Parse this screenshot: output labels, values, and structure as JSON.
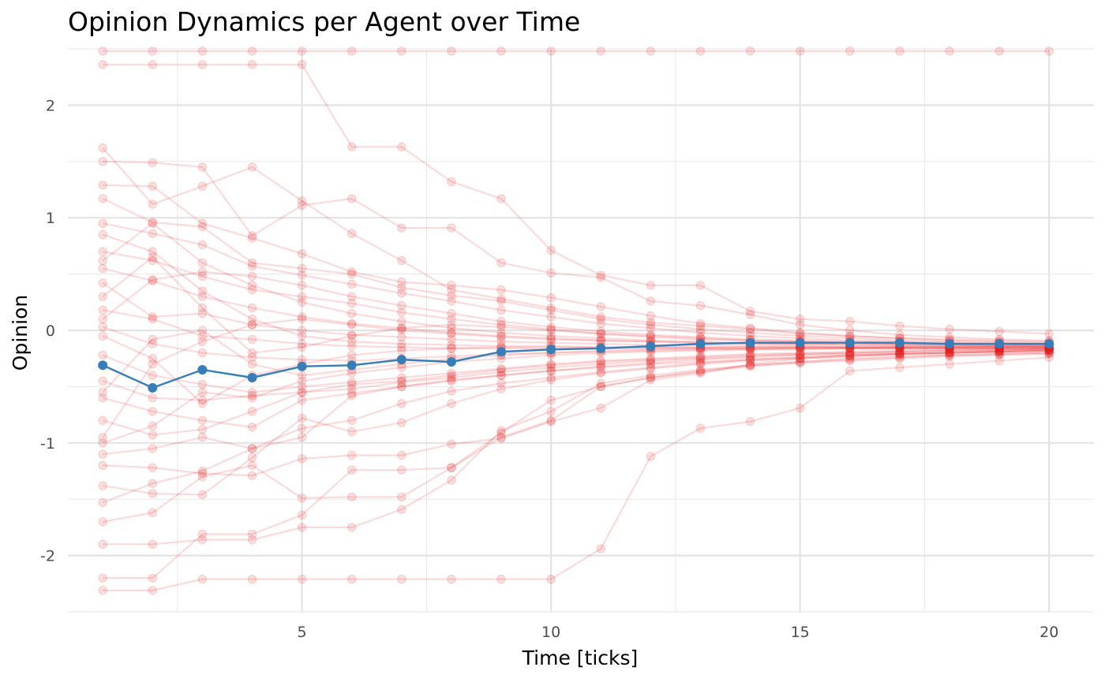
{
  "chart_data": {
    "type": "line",
    "title": "Opinion Dynamics per Agent over Time",
    "xlabel": "Time [ticks]",
    "ylabel": "Opinion",
    "xlim": [
      0.3,
      20.9
    ],
    "ylim": [
      -2.5,
      2.5
    ],
    "x_ticks": [
      5,
      10,
      15,
      20
    ],
    "x_tick_labels": [
      "5",
      "10",
      "15",
      "20"
    ],
    "x_minor_ticks": [
      2.5,
      7.5,
      12.5,
      17.5
    ],
    "y_ticks": [
      -2,
      -1,
      0,
      1,
      2
    ],
    "y_tick_labels": [
      "-2",
      "-1",
      "0",
      "1",
      "2"
    ],
    "y_minor_ticks": [
      -2.5,
      -1.5,
      -0.5,
      0.5,
      1.5,
      2.5
    ],
    "grid": true,
    "legend": "none",
    "agent_color": "#e41a1c",
    "mean_color": "#377eb8",
    "x": [
      1,
      2,
      3,
      4,
      5,
      6,
      7,
      8,
      9,
      10,
      11,
      12,
      13,
      14,
      15,
      16,
      17,
      18,
      19,
      20
    ],
    "highlighted_series": {
      "values": [
        -0.31,
        -0.51,
        -0.35,
        -0.42,
        -0.32,
        -0.31,
        -0.26,
        -0.28,
        -0.19,
        -0.17,
        -0.16,
        -0.14,
        -0.12,
        -0.11,
        -0.11,
        -0.11,
        -0.11,
        -0.12,
        -0.12,
        -0.12
      ]
    },
    "agent_series": [
      {
        "values": [
          2.48,
          2.48,
          2.48,
          2.48,
          2.48,
          2.48,
          2.48,
          2.48,
          2.48,
          2.48,
          2.48,
          2.48,
          2.48,
          2.48,
          2.48,
          2.48,
          2.48,
          2.48,
          2.48,
          2.48
        ]
      },
      {
        "values": [
          2.36,
          2.36,
          2.36,
          2.36,
          2.36,
          1.63,
          1.63,
          1.32,
          1.17,
          0.71,
          0.49,
          0.4,
          0.4,
          0.17,
          0.1,
          0.08,
          0.04,
          0.01,
          -0.01,
          -0.03
        ]
      },
      {
        "values": [
          1.62,
          1.12,
          1.28,
          1.45,
          1.15,
          0.86,
          0.62,
          0.36,
          0.28,
          0.2,
          0.12,
          0.07,
          0.04,
          0.01,
          -0.03,
          -0.05,
          -0.07,
          -0.08,
          -0.09,
          -0.1
        ]
      },
      {
        "values": [
          1.5,
          1.49,
          1.45,
          0.84,
          1.11,
          1.17,
          0.91,
          0.91,
          0.6,
          0.51,
          0.47,
          0.26,
          0.22,
          0.14,
          0.05,
          0.0,
          -0.04,
          -0.06,
          -0.08,
          -0.09
        ]
      },
      {
        "values": [
          1.29,
          1.28,
          0.95,
          0.82,
          0.68,
          0.52,
          0.43,
          0.4,
          0.36,
          0.29,
          0.21,
          0.13,
          0.06,
          0.02,
          -0.02,
          -0.05,
          -0.07,
          -0.09,
          -0.1,
          -0.11
        ]
      },
      {
        "values": [
          1.17,
          0.96,
          0.92,
          0.6,
          0.55,
          0.5,
          0.38,
          0.31,
          0.26,
          0.18,
          0.1,
          0.05,
          0.01,
          -0.02,
          -0.05,
          -0.07,
          -0.09,
          -0.1,
          -0.11,
          -0.12
        ]
      },
      {
        "values": [
          0.95,
          0.86,
          0.76,
          0.57,
          0.49,
          0.41,
          0.33,
          0.26,
          0.18,
          0.12,
          0.06,
          0.02,
          -0.02,
          -0.05,
          -0.07,
          -0.09,
          -0.1,
          -0.11,
          -0.12,
          -0.13
        ]
      },
      {
        "values": [
          0.7,
          0.62,
          0.48,
          0.36,
          0.3,
          0.24,
          0.16,
          0.1,
          0.05,
          0.01,
          -0.03,
          -0.05,
          -0.07,
          -0.09,
          -0.1,
          -0.11,
          -0.12,
          -0.13,
          -0.13,
          -0.14
        ]
      },
      {
        "values": [
          0.55,
          0.44,
          0.3,
          0.2,
          0.12,
          0.06,
          0.02,
          -0.02,
          -0.05,
          -0.07,
          -0.09,
          -0.1,
          -0.11,
          -0.12,
          -0.13,
          -0.13,
          -0.14,
          -0.14,
          -0.14,
          -0.15
        ]
      },
      {
        "values": [
          0.42,
          0.12,
          0.15,
          0.05,
          0.0,
          -0.04,
          -0.06,
          -0.08,
          -0.1,
          -0.11,
          -0.12,
          -0.13,
          -0.13,
          -0.14,
          -0.14,
          -0.15,
          -0.15,
          -0.15,
          -0.15,
          -0.15
        ]
      },
      {
        "values": [
          0.18,
          0.1,
          -0.05,
          -0.08,
          -0.12,
          -0.14,
          -0.15,
          -0.16,
          -0.16,
          -0.16,
          -0.16,
          -0.16,
          -0.16,
          -0.16,
          -0.16,
          -0.16,
          -0.16,
          -0.16,
          -0.16,
          -0.16
        ]
      },
      {
        "values": [
          0.03,
          -0.12,
          -0.2,
          -0.24,
          -0.26,
          -0.27,
          -0.25,
          -0.23,
          -0.21,
          -0.2,
          -0.19,
          -0.18,
          -0.17,
          -0.17,
          -0.16,
          -0.16,
          -0.16,
          -0.16,
          -0.16,
          -0.16
        ]
      },
      {
        "values": [
          -0.22,
          -0.4,
          -0.48,
          -0.55,
          -0.5,
          -0.46,
          -0.42,
          -0.38,
          -0.34,
          -0.3,
          -0.27,
          -0.25,
          -0.23,
          -0.21,
          -0.2,
          -0.19,
          -0.18,
          -0.17,
          -0.17,
          -0.17
        ]
      },
      {
        "values": [
          -0.45,
          -0.6,
          -0.62,
          -0.58,
          -0.55,
          -0.52,
          -0.46,
          -0.42,
          -0.37,
          -0.33,
          -0.3,
          -0.27,
          -0.25,
          -0.23,
          -0.21,
          -0.2,
          -0.19,
          -0.18,
          -0.17,
          -0.17
        ]
      },
      {
        "values": [
          -0.6,
          -0.72,
          -0.8,
          -0.86,
          -0.62,
          -0.56,
          -0.5,
          -0.44,
          -0.4,
          -0.36,
          -0.32,
          -0.29,
          -0.26,
          -0.24,
          -0.22,
          -0.21,
          -0.2,
          -0.19,
          -0.18,
          -0.17
        ]
      },
      {
        "values": [
          -0.8,
          -0.93,
          -0.88,
          -0.72,
          -0.55,
          -0.48,
          -0.45,
          -0.4,
          -0.35,
          -0.31,
          -0.28,
          -0.26,
          -0.24,
          -0.22,
          -0.21,
          -0.2,
          -0.19,
          -0.18,
          -0.18,
          -0.17
        ]
      },
      {
        "values": [
          -1.1,
          -1.05,
          -0.95,
          -1.05,
          -0.87,
          -0.8,
          -0.65,
          -0.54,
          -0.47,
          -0.42,
          -0.37,
          -0.33,
          -0.29,
          -0.26,
          -0.24,
          -0.22,
          -0.21,
          -0.2,
          -0.19,
          -0.18
        ]
      },
      {
        "values": [
          -1.2,
          -1.22,
          -1.27,
          -1.29,
          -1.14,
          -1.11,
          -1.11,
          -1.01,
          -0.96,
          -0.81,
          -0.69,
          -0.44,
          -0.38,
          -0.3,
          -0.25,
          -0.23,
          -0.21,
          -0.2,
          -0.19,
          -0.18
        ]
      },
      {
        "values": [
          -1.38,
          -1.45,
          -1.46,
          -1.13,
          -0.78,
          -0.9,
          -0.82,
          -0.65,
          -0.52,
          -0.44,
          -0.38,
          -0.34,
          -0.3,
          -0.27,
          -0.25,
          -0.23,
          -0.21,
          -0.2,
          -0.19,
          -0.18
        ]
      },
      {
        "values": [
          -1.53,
          -1.36,
          -1.25,
          -1.05,
          -0.95,
          -0.58,
          -0.5,
          -0.45,
          -0.4,
          -0.36,
          -0.33,
          -0.3,
          -0.28,
          -0.26,
          -0.24,
          -0.22,
          -0.21,
          -0.2,
          -0.19,
          -0.19
        ]
      },
      {
        "values": [
          -1.7,
          -1.62,
          -1.3,
          -1.2,
          -1.49,
          -1.48,
          -1.48,
          -1.22,
          -0.91,
          -0.62,
          -0.5,
          -0.42,
          -0.36,
          -0.31,
          -0.28,
          -0.25,
          -0.23,
          -0.22,
          -0.21,
          -0.2
        ]
      },
      {
        "values": [
          -1.9,
          -1.9,
          -1.86,
          -1.86,
          -1.75,
          -1.75,
          -1.59,
          -1.33,
          -0.89,
          -0.72,
          -0.47,
          -0.4,
          -0.35,
          -0.31,
          -0.28,
          -0.26,
          -0.24,
          -0.22,
          -0.21,
          -0.2
        ]
      },
      {
        "values": [
          -2.2,
          -2.2,
          -1.81,
          -1.81,
          -1.64,
          -1.24,
          -1.24,
          -1.22,
          -0.95,
          -0.8,
          -0.5,
          -0.42,
          -0.37,
          -0.32,
          -0.29,
          -0.27,
          -0.25,
          -0.23,
          -0.22,
          -0.21
        ]
      },
      {
        "values": [
          -2.31,
          -2.31,
          -2.21,
          -2.21,
          -2.21,
          -2.21,
          -2.21,
          -2.21,
          -2.21,
          -2.21,
          -1.94,
          -1.12,
          -0.87,
          -0.81,
          -0.69,
          -0.36,
          -0.33,
          -0.3,
          -0.27,
          -0.24
        ]
      },
      {
        "values": [
          0.1,
          0.45,
          0.52,
          0.48,
          0.4,
          0.3,
          0.22,
          0.15,
          0.08,
          0.03,
          -0.01,
          -0.04,
          -0.06,
          -0.08,
          -0.09,
          -0.1,
          -0.11,
          -0.12,
          -0.12,
          -0.13
        ]
      },
      {
        "values": [
          -0.95,
          -0.3,
          -0.1,
          0.05,
          0.1,
          0.05,
          0.0,
          -0.03,
          -0.06,
          -0.08,
          -0.09,
          -0.1,
          -0.11,
          -0.12,
          -0.12,
          -0.13,
          -0.13,
          -0.14,
          -0.14,
          -0.14
        ]
      },
      {
        "values": [
          0.85,
          0.7,
          0.35,
          0.1,
          -0.05,
          -0.1,
          -0.12,
          -0.13,
          -0.14,
          -0.14,
          -0.15,
          -0.15,
          -0.15,
          -0.15,
          -0.15,
          -0.15,
          -0.15,
          -0.15,
          -0.15,
          -0.15
        ]
      },
      {
        "values": [
          -0.05,
          -0.25,
          -0.65,
          -0.4,
          -0.3,
          -0.22,
          -0.18,
          -0.16,
          -0.15,
          -0.15,
          -0.15,
          -0.15,
          -0.15,
          -0.15,
          -0.15,
          -0.15,
          -0.15,
          -0.15,
          -0.15,
          -0.15
        ]
      },
      {
        "values": [
          0.3,
          0.65,
          0.2,
          -0.2,
          -0.15,
          -0.05,
          0.02,
          0.05,
          0.03,
          0.0,
          -0.03,
          -0.06,
          -0.08,
          -0.09,
          -0.1,
          -0.11,
          -0.12,
          -0.12,
          -0.13,
          -0.13
        ]
      },
      {
        "values": [
          -0.55,
          -0.08,
          0.0,
          -0.3,
          -0.4,
          -0.35,
          -0.3,
          -0.25,
          -0.22,
          -0.2,
          -0.18,
          -0.17,
          -0.16,
          -0.16,
          -0.15,
          -0.15,
          -0.15,
          -0.15,
          -0.15,
          -0.15
        ]
      },
      {
        "values": [
          0.62,
          0.95,
          0.6,
          0.4,
          0.25,
          0.15,
          0.08,
          0.02,
          -0.02,
          -0.05,
          -0.07,
          -0.09,
          -0.1,
          -0.11,
          -0.12,
          -0.12,
          -0.13,
          -0.13,
          -0.14,
          -0.14
        ]
      },
      {
        "values": [
          -1.0,
          -0.85,
          -0.55,
          -0.6,
          -0.45,
          -0.38,
          -0.33,
          -0.28,
          -0.25,
          -0.22,
          -0.2,
          -0.19,
          -0.18,
          -0.17,
          -0.17,
          -0.16,
          -0.16,
          -0.16,
          -0.16,
          -0.16
        ]
      }
    ]
  }
}
